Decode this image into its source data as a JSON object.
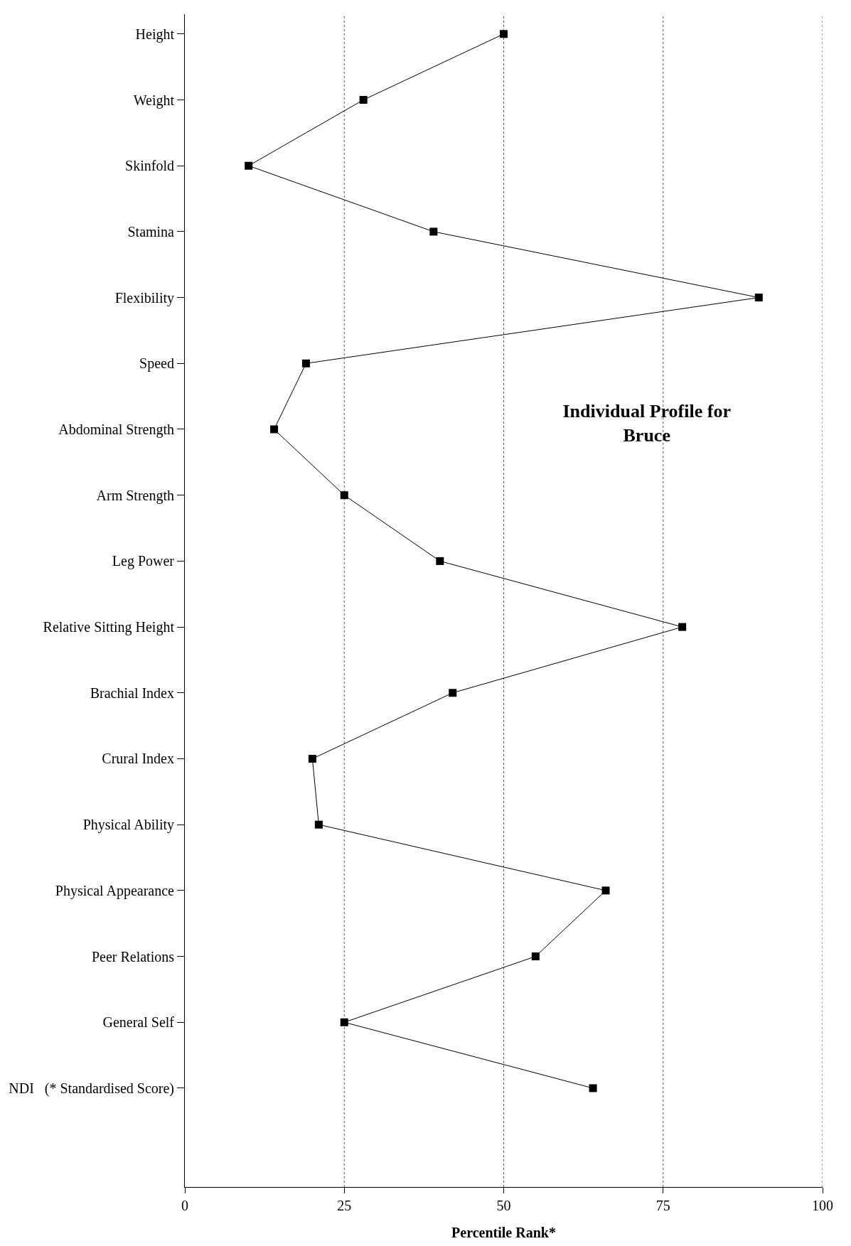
{
  "chart_data": {
    "type": "line",
    "orientation": "horizontal",
    "title": "Individual Profile for Bruce",
    "xlabel": "Percentile Rank*",
    "categories": [
      "Height",
      "Weight",
      "Skinfold",
      "Stamina",
      "Flexibility",
      "Speed",
      "Abdominal Strength",
      "Arm Strength",
      "Leg Power",
      "Relative Sitting Height",
      "Brachial Index",
      "Crural Index",
      "Physical Ability",
      "Physical Appearance",
      "Peer Relations",
      "General Self",
      "NDI   (* Standardised Score)"
    ],
    "series": [
      {
        "color": "#000000",
        "values": [
          50,
          28,
          10,
          39,
          90,
          19,
          14,
          25,
          40,
          78,
          42,
          20,
          21,
          66,
          55,
          25,
          64
        ]
      }
    ],
    "xlim": [
      0,
      100
    ],
    "xticks": [
      0,
      25,
      50,
      75,
      100
    ],
    "grid": "x",
    "marker": "square",
    "line_style": "solid"
  }
}
